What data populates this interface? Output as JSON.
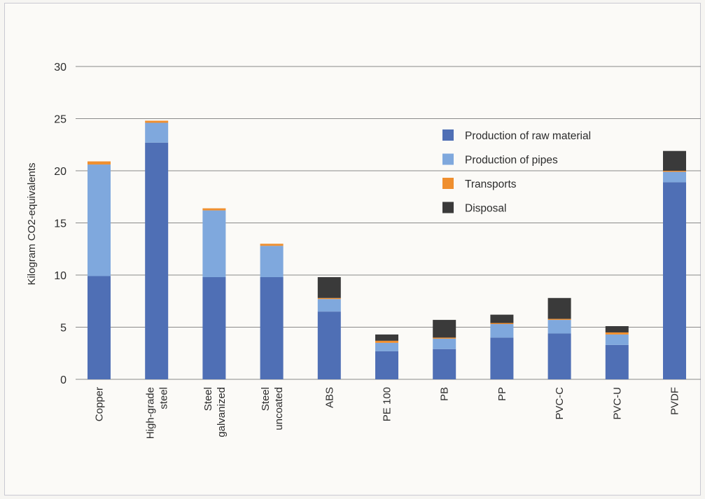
{
  "chart_data": {
    "type": "bar",
    "stacked": true,
    "categories": [
      [
        "Copper"
      ],
      [
        "High-grade",
        "steel"
      ],
      [
        "Steel",
        "galvanized"
      ],
      [
        "Steel",
        "uncoated"
      ],
      [
        "ABS"
      ],
      [
        "PE 100"
      ],
      [
        "PB"
      ],
      [
        "PP"
      ],
      [
        "PVC-C"
      ],
      [
        "PVC-U"
      ],
      [
        "PVDF"
      ]
    ],
    "series": [
      {
        "name": "Production of raw material",
        "color": "#4f6fb5",
        "values": [
          9.9,
          22.7,
          9.8,
          9.8,
          6.5,
          2.7,
          2.9,
          4.0,
          4.4,
          3.3,
          18.9
        ]
      },
      {
        "name": "Production of pipes",
        "color": "#7fa8dd",
        "values": [
          10.7,
          1.9,
          6.4,
          3.0,
          1.2,
          0.8,
          1.0,
          1.3,
          1.3,
          1.0,
          1.0
        ]
      },
      {
        "name": "Transports",
        "color": "#ef8f2f",
        "values": [
          0.3,
          0.2,
          0.2,
          0.2,
          0.1,
          0.2,
          0.1,
          0.1,
          0.1,
          0.2,
          0.1
        ]
      },
      {
        "name": "Disposal",
        "color": "#3a3a3a",
        "values": [
          0.0,
          0.0,
          0.0,
          0.0,
          2.0,
          0.6,
          1.7,
          0.8,
          2.0,
          0.6,
          1.9
        ]
      }
    ],
    "ylabel": "Kilogram CO2-equivalents",
    "xlabel": "",
    "ylim": [
      0,
      30
    ],
    "yticks": [
      0,
      5,
      10,
      15,
      20,
      25,
      30
    ],
    "grid": true,
    "legend_position": "top-right"
  }
}
